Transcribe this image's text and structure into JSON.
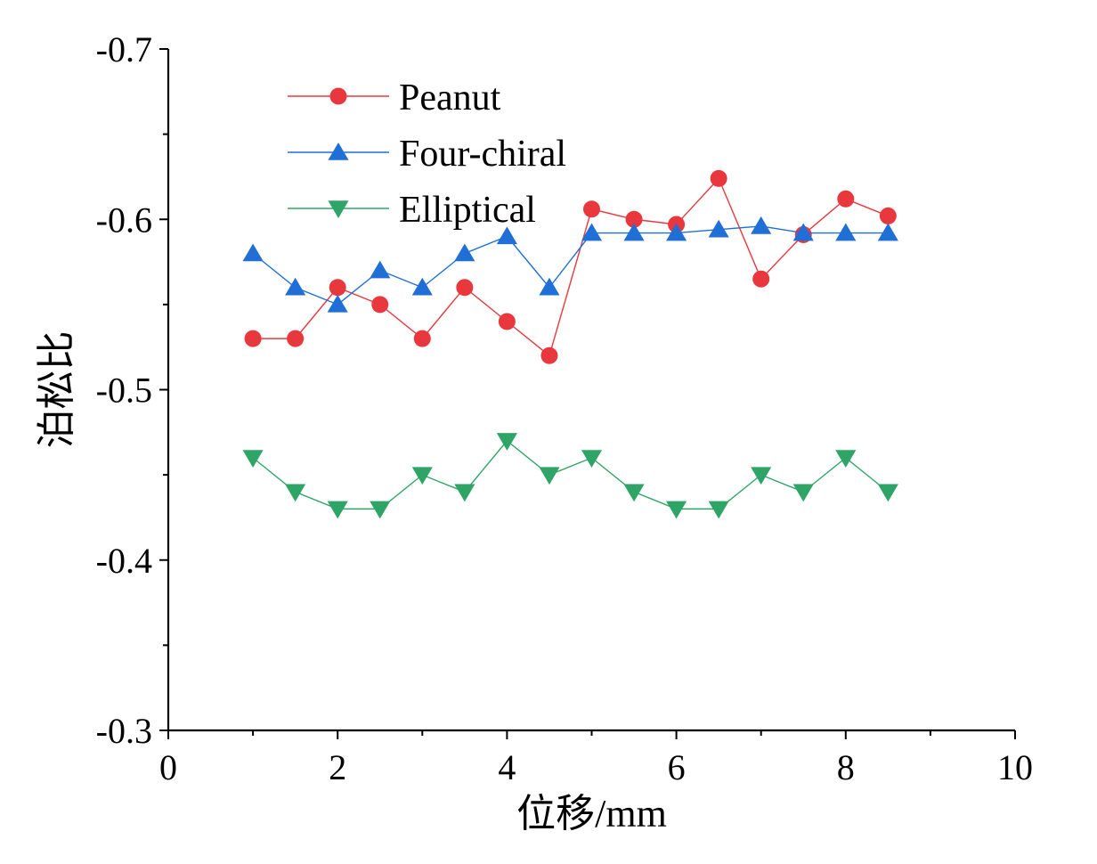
{
  "chart_data": {
    "type": "line",
    "title": "",
    "xlabel": "位移/mm",
    "ylabel": "泊松比",
    "xlim": [
      0,
      10
    ],
    "ylim": [
      -0.3,
      -0.7
    ],
    "y_inverted": true,
    "x_ticks": [
      0,
      2,
      4,
      6,
      8,
      10
    ],
    "x_tick_labels": [
      "0",
      "2",
      "4",
      "6",
      "8",
      "10"
    ],
    "y_ticks": [
      -0.7,
      -0.6,
      -0.5,
      -0.4,
      -0.3
    ],
    "y_tick_labels": [
      "-0.7",
      "-0.6",
      "-0.5",
      "-0.4",
      "-0.3"
    ],
    "grid": false,
    "legend_position": "top-left",
    "x": [
      1,
      1.5,
      2,
      2.5,
      3,
      3.5,
      4,
      4.5,
      5,
      5.5,
      6,
      6.5,
      7,
      7.5,
      8,
      8.5
    ],
    "series": [
      {
        "name": "Peanut",
        "color": "#e8383d",
        "marker": "circle",
        "values": [
          -0.53,
          -0.53,
          -0.56,
          -0.55,
          -0.53,
          -0.56,
          -0.54,
          -0.52,
          -0.606,
          -0.6,
          -0.597,
          -0.624,
          -0.565,
          -0.591,
          -0.612,
          -0.602
        ]
      },
      {
        "name": "Four-chiral",
        "color": "#1f6fd6",
        "marker": "triangle-up",
        "values": [
          -0.58,
          -0.56,
          -0.55,
          -0.57,
          -0.56,
          -0.58,
          -0.59,
          -0.56,
          -0.592,
          -0.592,
          -0.592,
          -0.594,
          -0.596,
          -0.592,
          -0.592,
          -0.592
        ]
      },
      {
        "name": "Elliptical",
        "color": "#2ea566",
        "marker": "triangle-down",
        "values": [
          -0.46,
          -0.44,
          -0.43,
          -0.43,
          -0.45,
          -0.44,
          -0.47,
          -0.45,
          -0.46,
          -0.44,
          -0.43,
          -0.43,
          -0.45,
          -0.44,
          -0.46,
          -0.44
        ]
      }
    ]
  }
}
